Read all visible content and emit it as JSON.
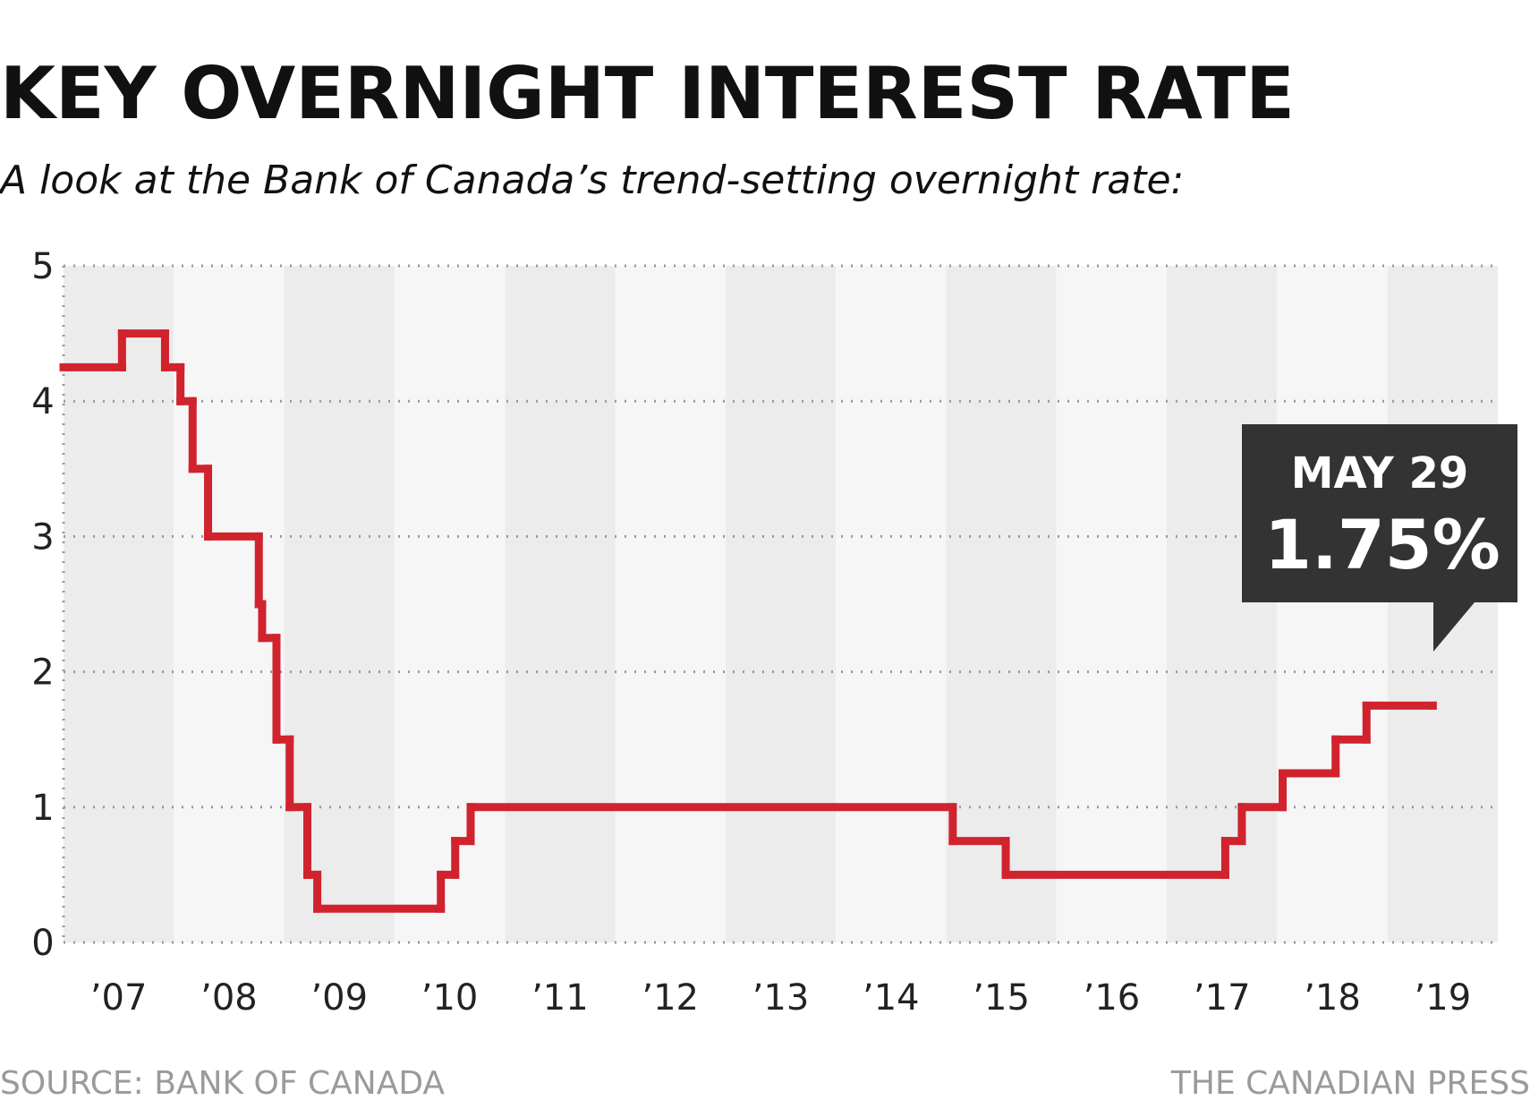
{
  "chart_data": {
    "type": "step-line",
    "title": "KEY OVERNIGHT INTEREST RATE",
    "subtitle": "A look at the Bank of Canada’s trend-setting overnight rate:",
    "source": "SOURCE: BANK OF CANADA",
    "credit": "THE CANADIAN PRESS",
    "callout_label": "MAY 29",
    "callout_value": "1.75%",
    "x": [
      2007.0,
      2007.53,
      2007.92,
      2008.06,
      2008.17,
      2008.31,
      2008.77,
      2008.8,
      2008.93,
      2009.05,
      2009.21,
      2009.3,
      2010.42,
      2010.55,
      2010.69,
      2015.06,
      2015.54,
      2017.53,
      2017.68,
      2018.05,
      2018.53,
      2018.81,
      2019.41
    ],
    "series": [
      {
        "name": "Overnight rate",
        "color": "#d0232e",
        "values": [
          4.25,
          4.5,
          4.25,
          4.0,
          3.5,
          3.0,
          2.5,
          2.25,
          1.5,
          1.0,
          0.5,
          0.25,
          0.5,
          0.75,
          1.0,
          0.75,
          0.5,
          0.75,
          1.0,
          1.25,
          1.5,
          1.75,
          1.75
        ]
      }
    ],
    "xlim": [
      2007,
      2020
    ],
    "xticks": [
      {
        "value": 2007.5,
        "label": "’07"
      },
      {
        "value": 2008.5,
        "label": "’08"
      },
      {
        "value": 2009.5,
        "label": "’09"
      },
      {
        "value": 2010.5,
        "label": "’10"
      },
      {
        "value": 2011.5,
        "label": "’11"
      },
      {
        "value": 2012.5,
        "label": "’12"
      },
      {
        "value": 2013.5,
        "label": "’13"
      },
      {
        "value": 2014.5,
        "label": "’14"
      },
      {
        "value": 2015.5,
        "label": "’15"
      },
      {
        "value": 2016.5,
        "label": "’16"
      },
      {
        "value": 2017.5,
        "label": "’17"
      },
      {
        "value": 2018.5,
        "label": "’18"
      },
      {
        "value": 2019.5,
        "label": "’19"
      }
    ],
    "ylim": [
      0,
      5
    ],
    "yticks": [
      0,
      1,
      2,
      3,
      4,
      5
    ],
    "grid": true
  }
}
